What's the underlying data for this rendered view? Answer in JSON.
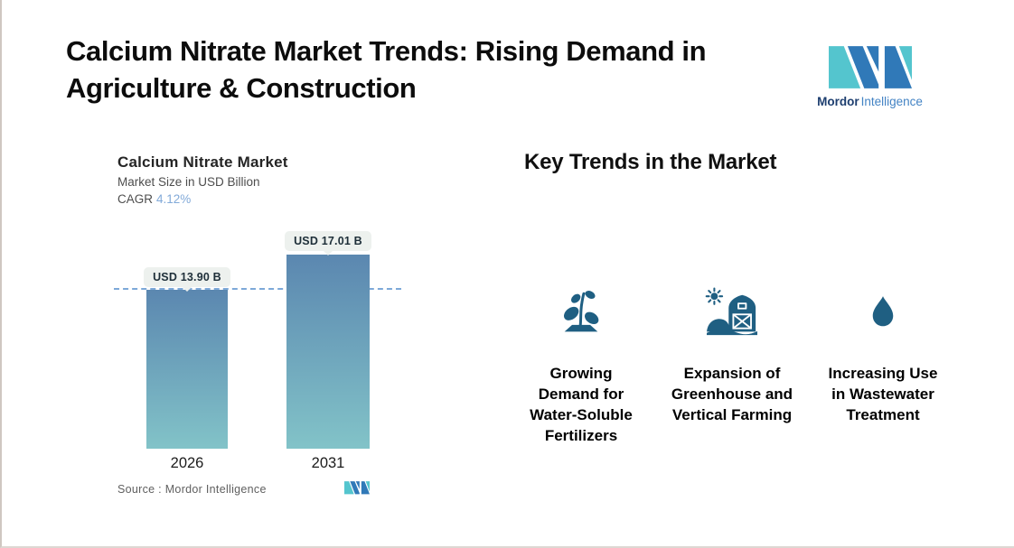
{
  "header": {
    "title": "Calcium Nitrate Market Trends: Rising Demand in\nAgriculture & Construction"
  },
  "brand": {
    "name_bold": "Mordor",
    "name_light": "Intelligence"
  },
  "chart": {
    "title": "Calcium Nitrate Market",
    "subtitle": "Market Size in USD Billion",
    "cagr_label": "CAGR",
    "cagr_value": "4.12%",
    "bars": [
      {
        "year": "2026",
        "label": "USD 13.90 B",
        "value": 13.9
      },
      {
        "year": "2031",
        "label": "USD 17.01 B",
        "value": 17.01
      }
    ],
    "source_label": "Source :  Mordor Intelligence"
  },
  "trends": {
    "heading": "Key Trends in the Market",
    "items": [
      {
        "icon": "seedling-icon",
        "label": "Growing\nDemand for\nWater-Soluble\nFertilizers"
      },
      {
        "icon": "barn-farm-icon",
        "label": "Expansion of\nGreenhouse and\nVertical Farming"
      },
      {
        "icon": "water-drop-icon",
        "label": "Increasing Use\nin Wastewater\nTreatment"
      }
    ]
  },
  "colors": {
    "bar_gradient_top": "#5b87b0",
    "bar_gradient_bottom": "#82c3c8",
    "dashed_reference_line": "#7da9d8",
    "bar_label_background": "#edf1ee",
    "cagr_value_text": "#82aad9",
    "trend_icon": "#1f5f82",
    "logo_blue": "#3079b8",
    "logo_teal": "#54c5ce"
  },
  "chart_data": {
    "type": "bar",
    "categories": [
      "2026",
      "2031"
    ],
    "values": [
      13.9,
      17.01
    ],
    "data_labels": [
      "USD 13.90 B",
      "USD 17.01 B"
    ],
    "title": "Calcium Nitrate Market",
    "subtitle": "Market Size in USD Billion",
    "cagr": "4.12%",
    "xlabel": "",
    "ylabel": "Market Size in USD Billion",
    "ylim": [
      0,
      17.01
    ],
    "grid": false,
    "legend": false,
    "reference_line_y": 13.9,
    "source": "Mordor Intelligence"
  }
}
